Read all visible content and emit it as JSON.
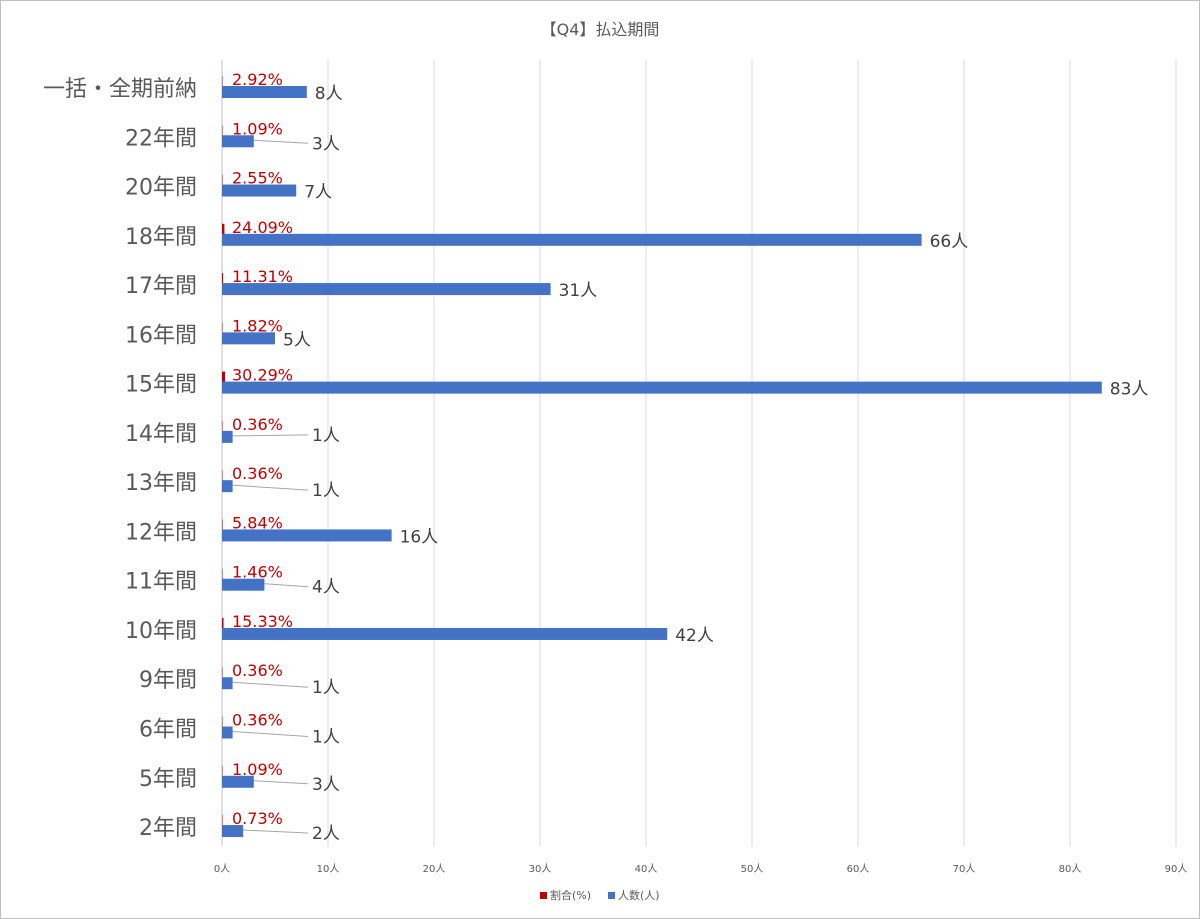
{
  "chart_data": {
    "type": "bar",
    "orientation": "horizontal",
    "title": "【Q4】払込期間",
    "categories": [
      "一括・全期前納",
      "22年間",
      "20年間",
      "18年間",
      "17年間",
      "16年間",
      "15年間",
      "14年間",
      "13年間",
      "12年間",
      "11年間",
      "10年間",
      "9年間",
      "6年間",
      "5年間",
      "2年間"
    ],
    "series": [
      {
        "name": "割合(%)",
        "color": "#c00000",
        "values": [
          2.92,
          1.09,
          2.55,
          24.09,
          11.31,
          1.82,
          30.29,
          0.36,
          0.36,
          5.84,
          1.46,
          15.33,
          0.36,
          0.36,
          1.09,
          0.73
        ],
        "labels": [
          "2.92%",
          "1.09%",
          "2.55%",
          "24.09%",
          "11.31%",
          "1.82%",
          "30.29%",
          "0.36%",
          "0.36%",
          "5.84%",
          "1.46%",
          "15.33%",
          "0.36%",
          "0.36%",
          "1.09%",
          "0.73%"
        ]
      },
      {
        "name": "人数(人)",
        "color": "#4472c4",
        "values": [
          8,
          3,
          7,
          66,
          31,
          5,
          83,
          1,
          1,
          16,
          4,
          42,
          1,
          1,
          3,
          2
        ],
        "labels": [
          "8人",
          "3人",
          "7人",
          "66人",
          "31人",
          "5人",
          "83人",
          "1人",
          "1人",
          "16人",
          "4人",
          "42人",
          "1人",
          "1人",
          "3人",
          "2人"
        ]
      }
    ],
    "xlim": [
      0,
      90
    ],
    "xticks": [
      "0人",
      "10人",
      "20人",
      "30人",
      "40人",
      "50人",
      "60人",
      "70人",
      "80人",
      "90人"
    ],
    "grid": true,
    "legend": "bottom"
  }
}
